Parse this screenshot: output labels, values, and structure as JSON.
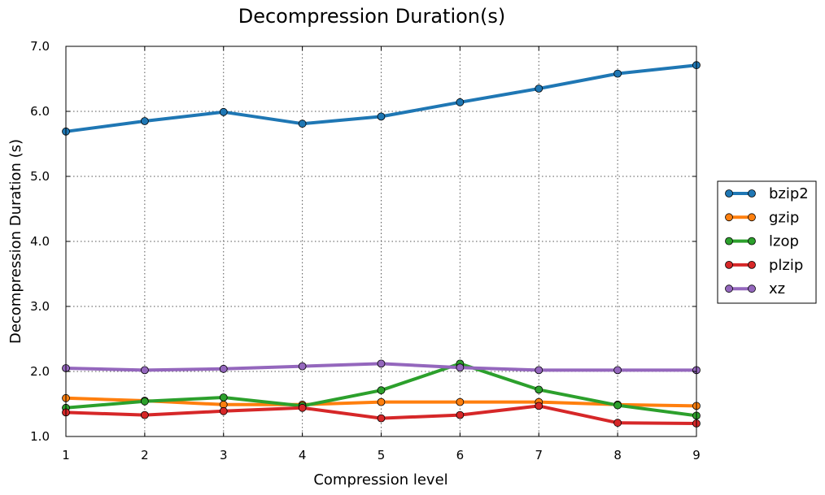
{
  "chart_data": {
    "type": "line",
    "title": "Decompression Duration(s)",
    "xlabel": "Compression level",
    "ylabel": "Decompression Duration (s)",
    "x": [
      1,
      2,
      3,
      4,
      5,
      6,
      7,
      8,
      9
    ],
    "x_tick_labels": [
      "1",
      "2",
      "3",
      "4",
      "5",
      "6",
      "7",
      "8",
      "9"
    ],
    "xlim": [
      1,
      9
    ],
    "ylim": [
      1.0,
      7.0
    ],
    "y_ticks": [
      1.0,
      2.0,
      3.0,
      4.0,
      5.0,
      6.0,
      7.0
    ],
    "y_tick_labels": [
      "1.0",
      "2.0",
      "3.0",
      "4.0",
      "5.0",
      "6.0",
      "7.0"
    ],
    "grid": true,
    "legend_position": "right",
    "series": [
      {
        "name": "bzip2",
        "color": "#1f77b4",
        "values": [
          5.69,
          5.85,
          5.99,
          5.81,
          5.92,
          6.14,
          6.35,
          6.58,
          6.71
        ]
      },
      {
        "name": "gzip",
        "color": "#ff7f0e",
        "values": [
          1.59,
          1.55,
          1.49,
          1.49,
          1.53,
          1.53,
          1.53,
          1.49,
          1.47
        ]
      },
      {
        "name": "lzop",
        "color": "#2ca02c",
        "values": [
          1.44,
          1.54,
          1.6,
          1.47,
          1.71,
          2.12,
          1.72,
          1.48,
          1.32
        ]
      },
      {
        "name": "plzip",
        "color": "#d62728",
        "values": [
          1.37,
          1.33,
          1.39,
          1.44,
          1.28,
          1.33,
          1.47,
          1.21,
          1.2
        ]
      },
      {
        "name": "xz",
        "color": "#9467bd",
        "values": [
          2.05,
          2.02,
          2.04,
          2.08,
          2.12,
          2.06,
          2.02,
          2.02,
          2.02
        ]
      }
    ]
  }
}
